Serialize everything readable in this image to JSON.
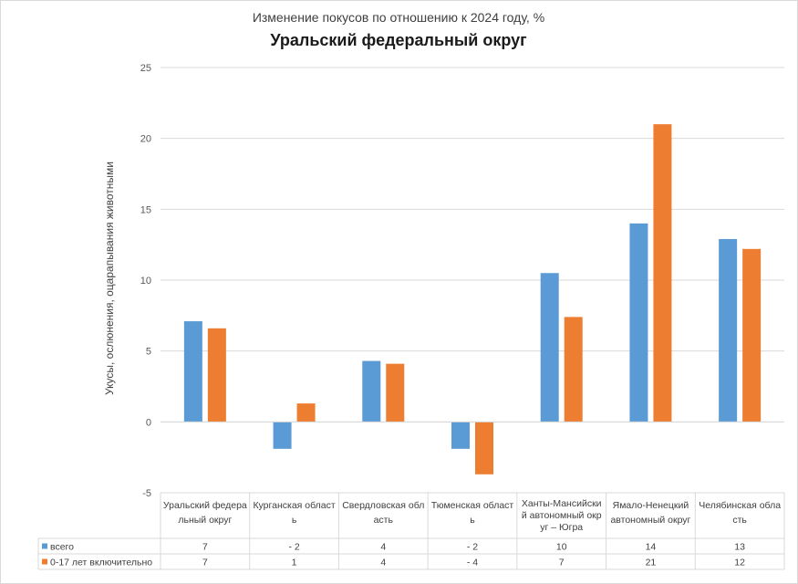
{
  "chart_data": {
    "type": "bar",
    "subtitle": "Изменение покусов по отношению к 2024 году, %",
    "title": "Уральский федеральный округ",
    "ylabel": "Укусы, ослюнения, оцарапывания животными",
    "xlabel": "",
    "ylim": [
      -5,
      25
    ],
    "yticks": [
      -5,
      0,
      5,
      10,
      15,
      20,
      25
    ],
    "grid": true,
    "legend": "data-table",
    "categories": [
      [
        "Уральский федера",
        "льный округ"
      ],
      [
        "Курганская област",
        "ь"
      ],
      [
        "Свердловская обл",
        "асть"
      ],
      [
        "Тюменская област",
        "ь"
      ],
      [
        "Ханты-Мансийски",
        "й автономный окр",
        "уг – Югра"
      ],
      [
        "Ямало-Ненецкий",
        "автономный округ"
      ],
      [
        "Челябинская обла",
        "сть"
      ]
    ],
    "series": [
      {
        "name": "всего",
        "color": "#5B9BD5",
        "values": [
          7.1,
          -1.9,
          4.3,
          -1.9,
          10.5,
          14.0,
          12.9
        ],
        "labels": [
          "7",
          "- 2",
          "4",
          "- 2",
          "10",
          "14",
          "13"
        ]
      },
      {
        "name": "0-17 лет включительно",
        "color": "#ED7D31",
        "values": [
          6.6,
          1.3,
          4.1,
          -3.7,
          7.4,
          21.0,
          12.2
        ],
        "labels": [
          "7",
          "1",
          "4",
          "- 4",
          "7",
          "21",
          "12"
        ]
      }
    ]
  }
}
